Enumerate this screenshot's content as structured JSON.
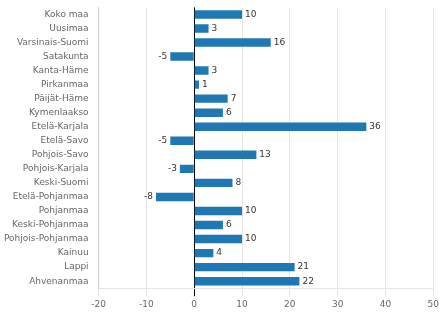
{
  "chart_data": {
    "type": "bar",
    "orientation": "horizontal",
    "categories": [
      "Koko maa",
      "Uusimaa",
      "Varsinais-Suomi",
      "Satakunta",
      "Kanta-Häme",
      "Pirkanmaa",
      "Päijät-Häme",
      "Kymenlaakso",
      "Etelä-Karjala",
      "Etelä-Savo",
      "Pohjois-Savo",
      "Pohjois-Karjala",
      "Keski-Suomi",
      "Etelä-Pohjanmaa",
      "Pohjanmaa",
      "Keski-Pohjanmaa",
      "Pohjois-Pohjanmaa",
      "Kainuu",
      "Lappi",
      "Ahvenanmaa"
    ],
    "values": [
      10,
      3,
      16,
      -5,
      3,
      1,
      7,
      6,
      36,
      -5,
      13,
      -3,
      8,
      -8,
      10,
      6,
      10,
      4,
      21,
      22
    ],
    "color": "#1f77b4",
    "xlim": [
      -20,
      50
    ],
    "xticks": [
      -20,
      -10,
      0,
      10,
      20,
      30,
      40,
      50
    ],
    "grid": true,
    "data_labels": true
  }
}
